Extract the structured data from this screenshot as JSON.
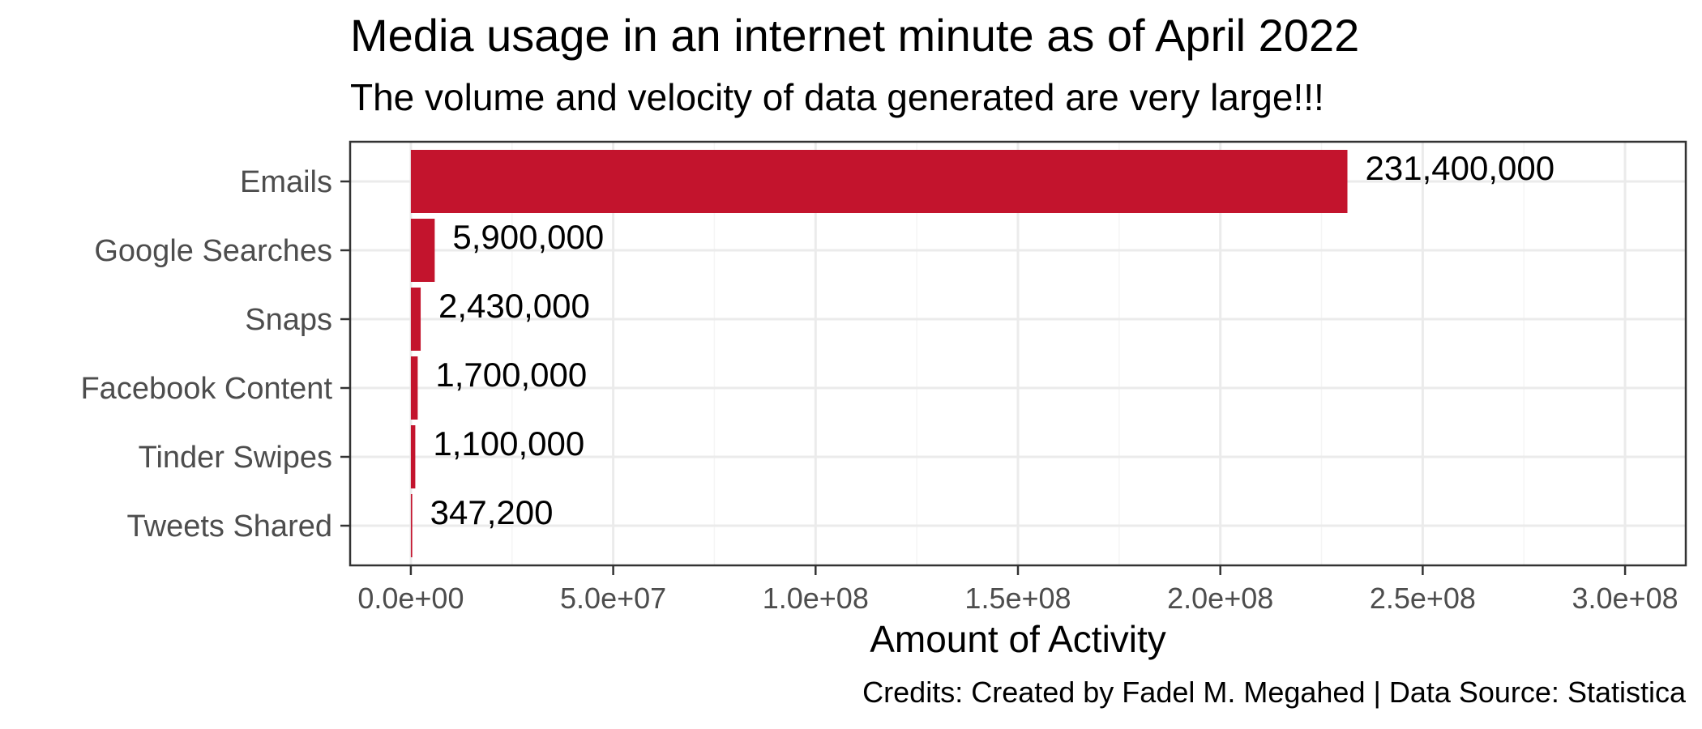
{
  "colors": {
    "bar": "#c3142d",
    "grid_major": "#ebebeb",
    "grid_minor": "#f5f5f5",
    "panel_border": "#333333",
    "tick_text": "#4d4d4d",
    "text": "#000000"
  },
  "chart_data": {
    "type": "bar",
    "orientation": "horizontal",
    "title": "Media usage in an internet minute as of April 2022",
    "subtitle": "The volume and velocity of data generated are very large!!!",
    "xlabel": "Amount of Activity",
    "ylabel": "",
    "caption": "Credits: Created by Fadel M. Megahed | Data Source: Statistica",
    "categories": [
      "Emails",
      "Google Searches",
      "Snaps",
      "Facebook Content",
      "Tinder Swipes",
      "Tweets Shared"
    ],
    "values": [
      231400000,
      5900000,
      2430000,
      1700000,
      1100000,
      347200
    ],
    "value_labels": [
      "231,400,000",
      "5,900,000",
      "2,430,000",
      "1,700,000",
      "1,100,000",
      "347,200"
    ],
    "xlim": [
      -15000000,
      315000000
    ],
    "x_ticks": [
      0,
      50000000,
      100000000,
      150000000,
      200000000,
      250000000,
      300000000
    ],
    "x_tick_labels": [
      "0.0e+00",
      "5.0e+07",
      "1.0e+08",
      "1.5e+08",
      "2.0e+08",
      "2.5e+08",
      "3.0e+08"
    ],
    "x_minor_ticks": [
      25000000,
      75000000,
      125000000,
      175000000,
      225000000,
      275000000
    ],
    "grid": true,
    "legend": "none"
  }
}
